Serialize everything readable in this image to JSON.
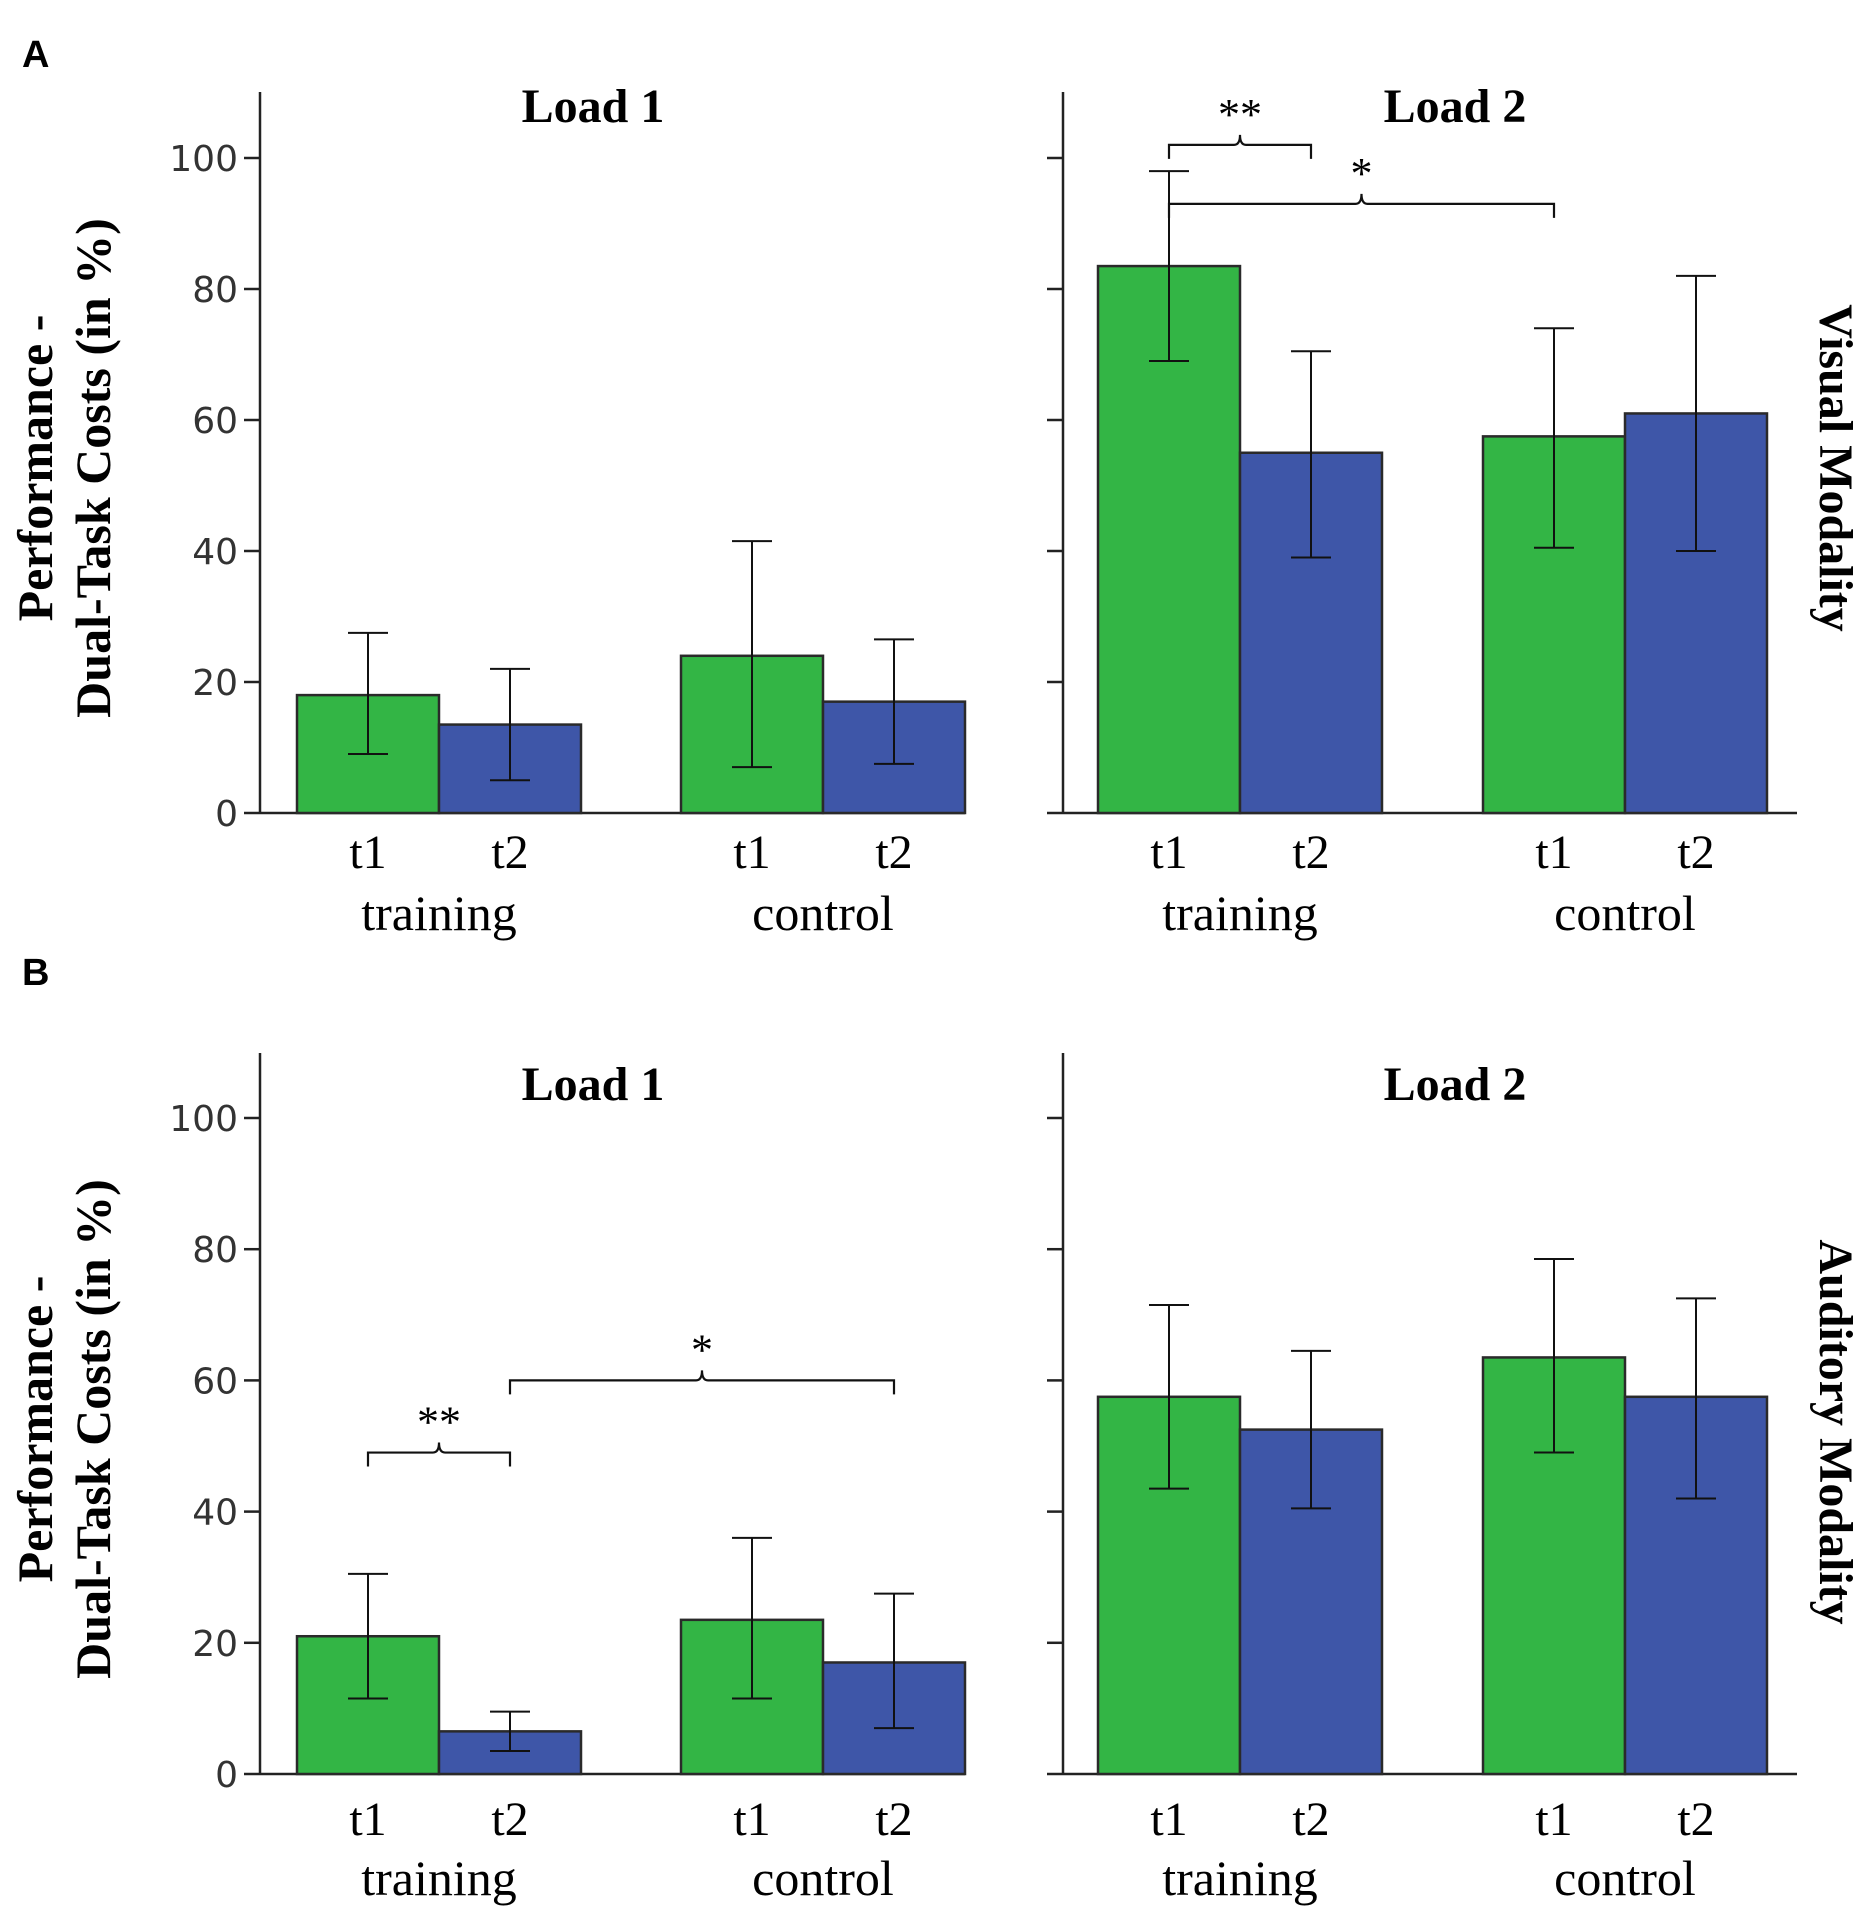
{
  "chart_data": {
    "type": "bar",
    "ylabel_lines": [
      "Performance -",
      "Dual-Task Costs (in %)"
    ],
    "ylim": [
      0,
      110
    ],
    "yticks": [
      "0",
      "20",
      "40",
      "60",
      "80",
      "100"
    ],
    "series": [
      {
        "name": "t1",
        "color": "#33b545"
      },
      {
        "name": "t2",
        "color": "#3e56a8"
      }
    ],
    "rows": [
      {
        "letter": "A",
        "modality": "Visual Modality",
        "panels": [
          {
            "title": "Load 1",
            "show_tick_labels": true,
            "groups": [
              {
                "name": "training",
                "bars": [
                  {
                    "label": "t1",
                    "value": 18,
                    "err_low": 9,
                    "err_high": 27.5
                  },
                  {
                    "label": "t2",
                    "value": 13.5,
                    "err_low": 5,
                    "err_high": 22
                  }
                ]
              },
              {
                "name": "control",
                "bars": [
                  {
                    "label": "t1",
                    "value": 24,
                    "err_low": 7,
                    "err_high": 41.5
                  },
                  {
                    "label": "t2",
                    "value": 17,
                    "err_low": 7.5,
                    "err_high": 26.5
                  }
                ]
              }
            ],
            "significance": []
          },
          {
            "title": "Load 2",
            "show_tick_labels": false,
            "groups": [
              {
                "name": "training",
                "bars": [
                  {
                    "label": "t1",
                    "value": 83.5,
                    "err_low": 69,
                    "err_high": 98
                  },
                  {
                    "label": "t2",
                    "value": 55,
                    "err_low": 39,
                    "err_high": 70.5
                  }
                ]
              },
              {
                "name": "control",
                "bars": [
                  {
                    "label": "t1",
                    "value": 57.5,
                    "err_low": 40.5,
                    "err_high": 74
                  },
                  {
                    "label": "t2",
                    "value": 61,
                    "err_low": 40,
                    "err_high": 82
                  }
                ]
              }
            ],
            "significance": [
              {
                "label": "**",
                "from": [
                  0,
                  0
                ],
                "to": [
                  0,
                  1
                ],
                "y": 102
              },
              {
                "label": "*",
                "from": [
                  0,
                  0
                ],
                "to": [
                  1,
                  0
                ],
                "y": 93
              }
            ]
          }
        ]
      },
      {
        "letter": "B",
        "modality": "Auditory Modality",
        "panels": [
          {
            "title": "Load 1",
            "show_tick_labels": true,
            "groups": [
              {
                "name": "training",
                "bars": [
                  {
                    "label": "t1",
                    "value": 21,
                    "err_low": 11.5,
                    "err_high": 30.5
                  },
                  {
                    "label": "t2",
                    "value": 6.5,
                    "err_low": 3.5,
                    "err_high": 9.5
                  }
                ]
              },
              {
                "name": "control",
                "bars": [
                  {
                    "label": "t1",
                    "value": 23.5,
                    "err_low": 11.5,
                    "err_high": 36
                  },
                  {
                    "label": "t2",
                    "value": 17,
                    "err_low": 7,
                    "err_high": 27.5
                  }
                ]
              }
            ],
            "significance": [
              {
                "label": "**",
                "from": [
                  0,
                  0
                ],
                "to": [
                  0,
                  1
                ],
                "y": 49
              },
              {
                "label": "*",
                "from": [
                  0,
                  1
                ],
                "to": [
                  1,
                  1
                ],
                "y": 60
              }
            ]
          },
          {
            "title": "Load 2",
            "show_tick_labels": false,
            "groups": [
              {
                "name": "training",
                "bars": [
                  {
                    "label": "t1",
                    "value": 57.5,
                    "err_low": 43.5,
                    "err_high": 71.5
                  },
                  {
                    "label": "t2",
                    "value": 52.5,
                    "err_low": 40.5,
                    "err_high": 64.5
                  }
                ]
              },
              {
                "name": "control",
                "bars": [
                  {
                    "label": "t1",
                    "value": 63.5,
                    "err_low": 49,
                    "err_high": 78.5
                  },
                  {
                    "label": "t2",
                    "value": 57.5,
                    "err_low": 42,
                    "err_high": 72.5
                  }
                ]
              }
            ],
            "significance": []
          }
        ]
      }
    ]
  }
}
